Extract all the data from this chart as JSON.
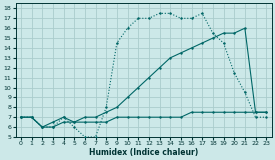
{
  "xlabel": "Humidex (Indice chaleur)",
  "bg_color": "#cce8e8",
  "line_color": "#006666",
  "grid_color": "#aacccc",
  "xlim": [
    -0.5,
    23.5
  ],
  "ylim": [
    5,
    18.5
  ],
  "xticks": [
    0,
    1,
    2,
    3,
    4,
    5,
    6,
    7,
    8,
    9,
    10,
    11,
    12,
    13,
    14,
    15,
    16,
    17,
    18,
    19,
    20,
    21,
    22,
    23
  ],
  "yticks": [
    5,
    6,
    7,
    8,
    9,
    10,
    11,
    12,
    13,
    14,
    15,
    16,
    17,
    18
  ],
  "line_dotted_x": [
    0,
    1,
    2,
    3,
    4,
    5,
    6,
    7,
    8,
    9,
    10,
    11,
    12,
    13,
    14,
    15,
    16,
    17,
    18,
    19,
    20,
    21,
    22,
    23
  ],
  "line_dotted_y": [
    7,
    7,
    6,
    6,
    7,
    6,
    5,
    5,
    8,
    14.5,
    16,
    17,
    17,
    17.5,
    17.5,
    17,
    17,
    17.5,
    15.5,
    14.5,
    11.5,
    9.5,
    7,
    7
  ],
  "line_solid1_x": [
    0,
    1,
    2,
    3,
    4,
    5,
    6,
    7,
    8,
    9,
    10,
    11,
    12,
    13,
    14,
    15,
    16,
    17,
    18,
    19,
    20,
    21,
    22,
    23
  ],
  "line_solid1_y": [
    7,
    7,
    6,
    6.5,
    7,
    6.5,
    7,
    7,
    7.5,
    8,
    9,
    10,
    11,
    12,
    13,
    13.5,
    14,
    14.5,
    15,
    15.5,
    15.5,
    16,
    7.5,
    7.5
  ],
  "line_solid2_x": [
    0,
    1,
    2,
    3,
    4,
    5,
    6,
    7,
    8,
    9,
    10,
    11,
    12,
    13,
    14,
    15,
    16,
    17,
    18,
    19,
    20,
    21,
    22,
    23
  ],
  "line_solid2_y": [
    7,
    7,
    6,
    6,
    6.5,
    6.5,
    6.5,
    6.5,
    6.5,
    7,
    7,
    7,
    7,
    7,
    7,
    7,
    7.5,
    7.5,
    7.5,
    7.5,
    7.5,
    7.5,
    7.5,
    7.5
  ]
}
